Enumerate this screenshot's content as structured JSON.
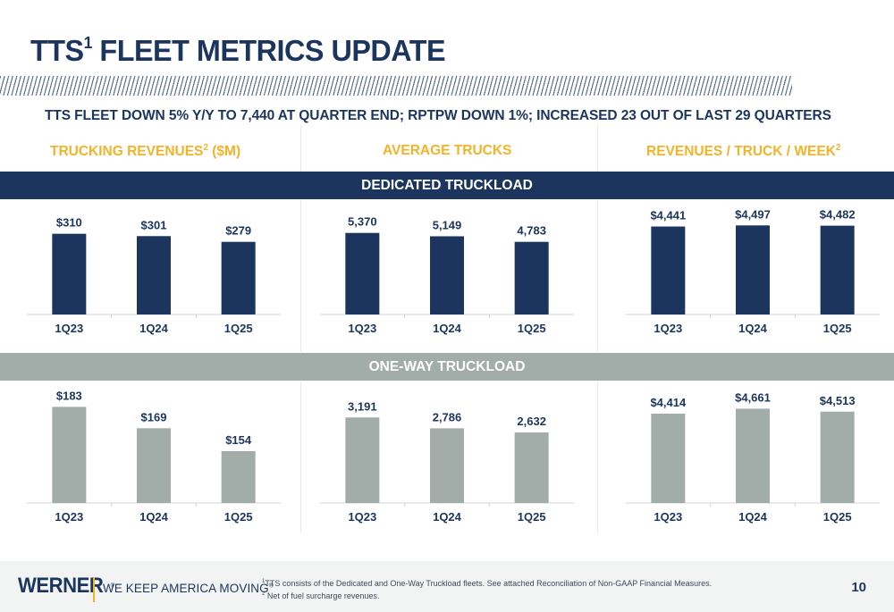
{
  "title": {
    "main": "TTS",
    "sup": "1",
    "rest": " FLEET METRICS UPDATE"
  },
  "subtitle": "TTS FLEET DOWN 5% Y/Y TO 7,440 AT QUARTER END; RPTPW DOWN 1%; INCREASED 23 OUT OF LAST 29 QUARTERS",
  "columns": [
    {
      "label": "TRUCKING REVENUES",
      "sup": "2",
      "suffix": " ($M)"
    },
    {
      "label": "AVERAGE TRUCKS",
      "sup": "",
      "suffix": ""
    },
    {
      "label": "REVENUES / TRUCK / WEEK",
      "sup": "2",
      "suffix": ""
    }
  ],
  "bands": {
    "dedicated": "DEDICATED TRUCKLOAD",
    "oneway": "ONE-WAY TRUCKLOAD"
  },
  "colors": {
    "navy": "#1b355e",
    "gray": "#a2aca8",
    "gold": "#f0b429"
  },
  "chart_data": [
    {
      "type": "bar",
      "segment": "DEDICATED TRUCKLOAD",
      "metric": "TRUCKING REVENUES ($M)",
      "categories": [
        "1Q23",
        "1Q24",
        "1Q25"
      ],
      "values": [
        310,
        301,
        279
      ],
      "labels": [
        "$310",
        "$301",
        "$279"
      ],
      "ylim": [
        0,
        350
      ],
      "color": "#1b355e"
    },
    {
      "type": "bar",
      "segment": "DEDICATED TRUCKLOAD",
      "metric": "AVERAGE TRUCKS",
      "categories": [
        "1Q23",
        "1Q24",
        "1Q25"
      ],
      "values": [
        5370,
        5149,
        4783
      ],
      "labels": [
        "5,370",
        "5,149",
        "4,783"
      ],
      "ylim": [
        0,
        6000
      ],
      "color": "#1b355e"
    },
    {
      "type": "bar",
      "segment": "DEDICATED TRUCKLOAD",
      "metric": "REVENUES / TRUCK / WEEK",
      "categories": [
        "1Q23",
        "1Q24",
        "1Q25"
      ],
      "values": [
        4441,
        4497,
        4482
      ],
      "labels": [
        "$4,441",
        "$4,497",
        "$4,482"
      ],
      "ylim": [
        0,
        4600
      ],
      "color": "#1b355e"
    },
    {
      "type": "bar",
      "segment": "ONE-WAY TRUCKLOAD",
      "metric": "TRUCKING REVENUES ($M)",
      "categories": [
        "1Q23",
        "1Q24",
        "1Q25"
      ],
      "values": [
        183,
        169,
        154
      ],
      "labels": [
        "$183",
        "$169",
        "$154"
      ],
      "ylim": [
        120,
        185
      ],
      "color": "#a2aca8"
    },
    {
      "type": "bar",
      "segment": "ONE-WAY TRUCKLOAD",
      "metric": "AVERAGE TRUCKS",
      "categories": [
        "1Q23",
        "1Q24",
        "1Q25"
      ],
      "values": [
        3191,
        2786,
        2632
      ],
      "labels": [
        "3,191",
        "2,786",
        "2,632"
      ],
      "ylim": [
        0,
        3700
      ],
      "color": "#a2aca8"
    },
    {
      "type": "bar",
      "segment": "ONE-WAY TRUCKLOAD",
      "metric": "REVENUES / TRUCK / WEEK",
      "categories": [
        "1Q23",
        "1Q24",
        "1Q25"
      ],
      "values": [
        4414,
        4661,
        4513
      ],
      "labels": [
        "$4,414",
        "$4,661",
        "$4,513"
      ],
      "ylim": [
        0,
        4900
      ],
      "color": "#a2aca8"
    }
  ],
  "footer": {
    "logo": "WERNER",
    "logo_mark": "®",
    "tagline": "WE KEEP AMERICA MOVING",
    "tagline_mark": "®",
    "note1_sup": "1",
    "note1": "TTS consists of the Dedicated and One-Way Truckload fleets. See attached Reconciliation of Non-GAAP Financial Measures.",
    "note2_sup": "2",
    "note2": " Net of fuel surcharge revenues.",
    "page": "10"
  }
}
